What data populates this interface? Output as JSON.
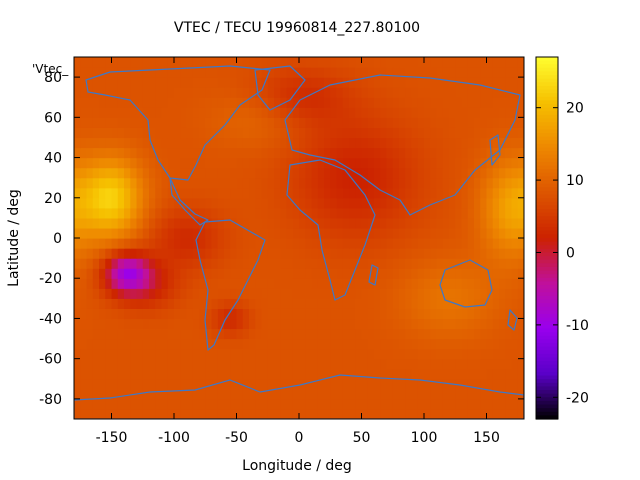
{
  "chart_data": {
    "type": "heatmap",
    "title": "VTEC / TECU 19960814_227.80100",
    "xlabel": "Longitude / deg",
    "ylabel": "Latitude / deg",
    "legend_key": "'Vtec_",
    "xlim": [
      -180,
      180
    ],
    "ylim": [
      -90,
      90
    ],
    "x_ticks": [
      -150,
      -100,
      -50,
      0,
      50,
      100,
      150
    ],
    "y_ticks": [
      -80,
      -60,
      -40,
      -20,
      0,
      20,
      40,
      60,
      80
    ],
    "colorbar": {
      "range": [
        -23,
        27
      ],
      "ticks": [
        -20,
        -10,
        0,
        10,
        20
      ],
      "palette": [
        "#000000",
        "#5a00c8",
        "#9900ee",
        "#c0109b",
        "#cc2200",
        "#dd5500",
        "#ee8800",
        "#f6c000",
        "#ffff30"
      ]
    },
    "field": {
      "background_value": 8,
      "hotspots": [
        {
          "lon": -150,
          "lat": 20,
          "value": 22,
          "rlon": 25,
          "rlat": 20
        },
        {
          "lon": 170,
          "lat": 15,
          "value": 17,
          "rlon": 25,
          "rlat": 25
        },
        {
          "lon": -138,
          "lat": -17,
          "value": -7,
          "rlon": 18,
          "rlat": 10
        },
        {
          "lon": -122,
          "lat": -23,
          "value": 2,
          "rlon": 25,
          "rlat": 12
        },
        {
          "lon": 45,
          "lat": 30,
          "value": 2,
          "rlon": 50,
          "rlat": 30
        },
        {
          "lon": 0,
          "lat": 70,
          "value": 3,
          "rlon": 40,
          "rlat": 15
        },
        {
          "lon": -90,
          "lat": 0,
          "value": 3,
          "rlon": 30,
          "rlat": 15
        },
        {
          "lon": -55,
          "lat": -40,
          "value": 3,
          "rlon": 15,
          "rlat": 8
        },
        {
          "lon": 120,
          "lat": -30,
          "value": 12,
          "rlon": 40,
          "rlat": 20
        },
        {
          "lon": -30,
          "lat": 60,
          "value": 11,
          "rlon": 40,
          "rlat": 15
        }
      ]
    }
  }
}
